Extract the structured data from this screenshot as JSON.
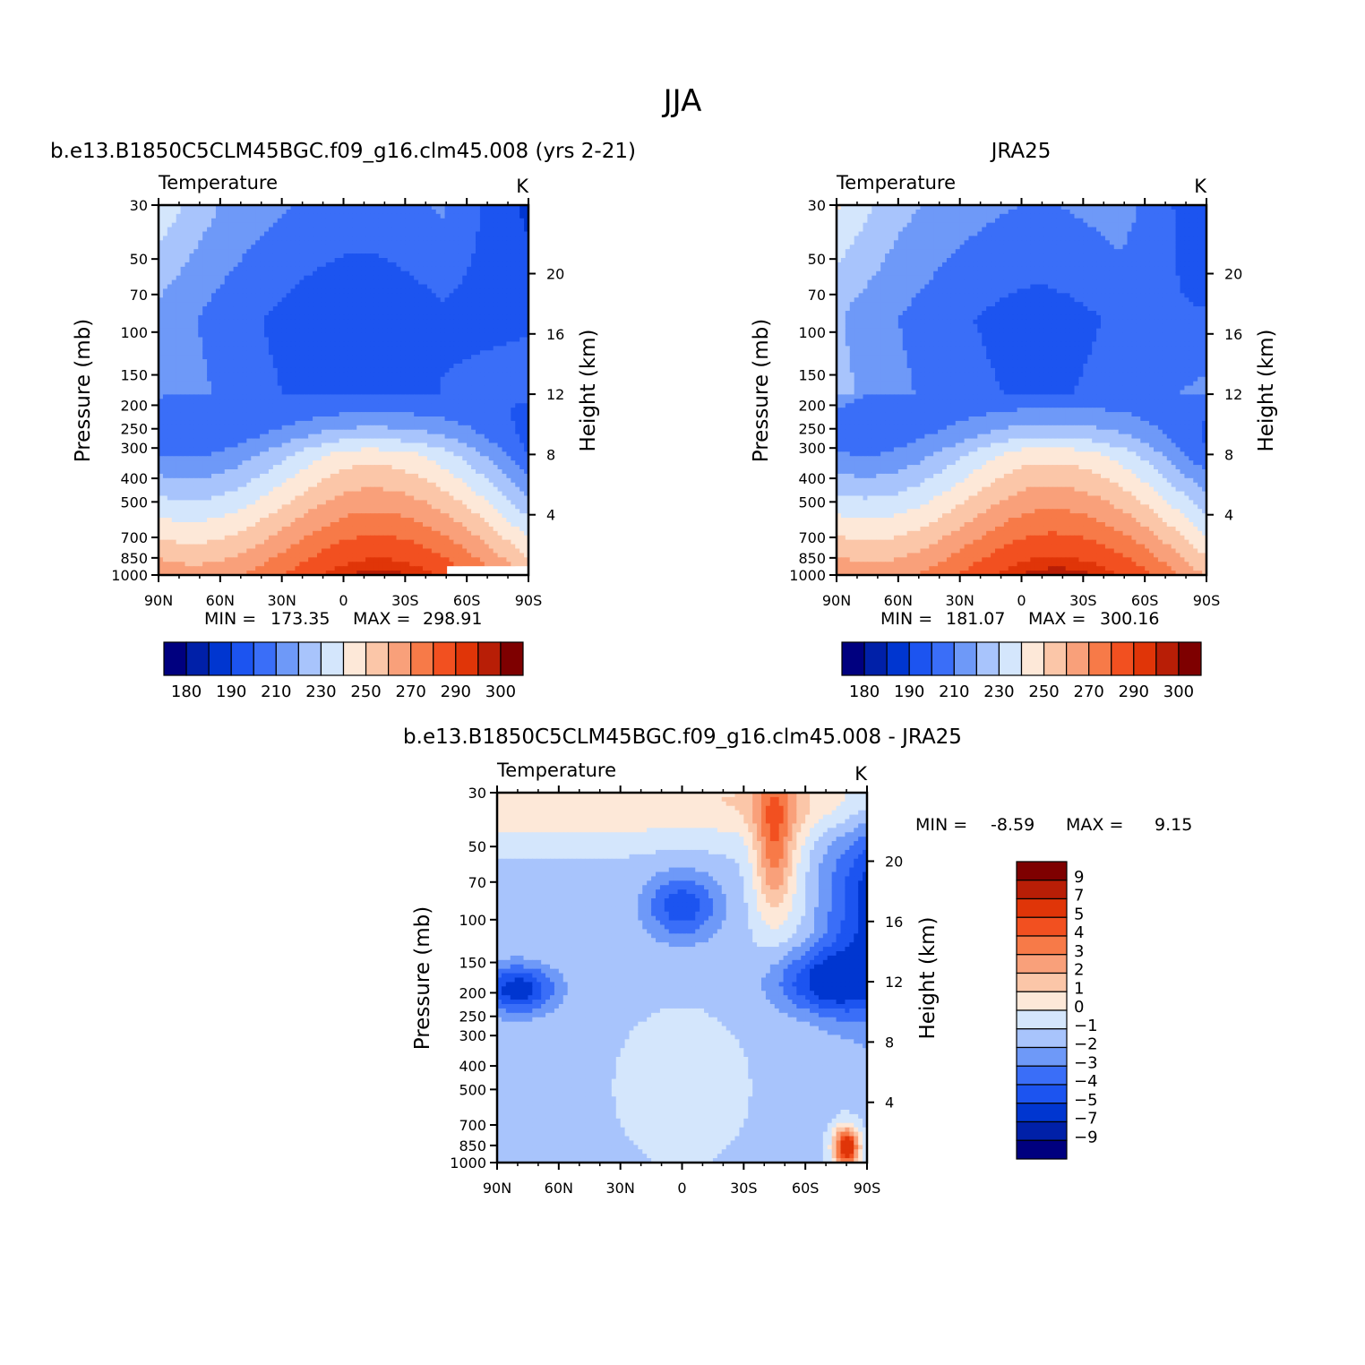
{
  "title": "JJA",
  "colors": {
    "temperature_palette": [
      "#00007f",
      "#0020a8",
      "#0036d0",
      "#1c54f0",
      "#3a6ef8",
      "#6e99f8",
      "#a8c4fc",
      "#d4e6fc",
      "#fde8d8",
      "#fbc6a8",
      "#f9a07a",
      "#f77a48",
      "#f25020",
      "#e03508",
      "#b81e06",
      "#7e0000"
    ],
    "difference_palette": [
      "#00007f",
      "#0020a8",
      "#0036d0",
      "#1c54f0",
      "#3a6ef8",
      "#6e99f8",
      "#a8c4fc",
      "#d4e6fc",
      "#fde8d8",
      "#fbc6a8",
      "#f9a07a",
      "#f77a48",
      "#f25020",
      "#e03508",
      "#b81e06",
      "#7e0000"
    ]
  },
  "chart_data": [
    {
      "type": "heatmap",
      "subtitle": "b.e13.B1850C5CLM45BGC.f09_g16.clm45.008 (yrs 2-21)",
      "variable": "Temperature",
      "units": "K",
      "xlabel": "",
      "ylabel": "Pressure (mb)",
      "ylabel_right": "Height (km)",
      "x_ticks": [
        "90N",
        "60N",
        "30N",
        "0",
        "30S",
        "60S",
        "90S"
      ],
      "y_ticks": [
        "30",
        "50",
        "70",
        "100",
        "150",
        "200",
        "250",
        "300",
        "400",
        "500",
        "700",
        "850",
        "1000"
      ],
      "y_right_ticks": [
        "20",
        "16",
        "12",
        "8",
        "4"
      ],
      "ylim": [
        1000,
        30
      ],
      "log_scale_y": true,
      "min_label": "MIN =",
      "min_value": "173.35",
      "max_label": "MAX =",
      "max_value": "298.91",
      "colorbar_labels": [
        "180",
        "190",
        "210",
        "230",
        "250",
        "270",
        "290",
        "300"
      ],
      "colorbar_orientation": "horizontal",
      "field": {
        "t_top": 212,
        "t_bottom": 297,
        "tropo_min": 192,
        "polar_top": 178,
        "polar_bottom": 255,
        "missing_south_surface": true
      }
    },
    {
      "type": "heatmap",
      "subtitle": "JRA25",
      "variable": "Temperature",
      "units": "K",
      "xlabel": "",
      "ylabel": "Pressure (mb)",
      "ylabel_right": "Height (km)",
      "x_ticks": [
        "90N",
        "60N",
        "30N",
        "0",
        "30S",
        "60S",
        "90S"
      ],
      "y_ticks": [
        "30",
        "50",
        "70",
        "100",
        "150",
        "200",
        "250",
        "300",
        "400",
        "500",
        "700",
        "850",
        "1000"
      ],
      "y_right_ticks": [
        "20",
        "16",
        "12",
        "8",
        "4"
      ],
      "ylim": [
        1000,
        30
      ],
      "log_scale_y": true,
      "min_label": "MIN =",
      "min_value": "181.07",
      "max_label": "MAX =",
      "max_value": "300.16",
      "colorbar_labels": [
        "180",
        "190",
        "210",
        "230",
        "250",
        "270",
        "290",
        "300"
      ],
      "colorbar_orientation": "horizontal",
      "field": {
        "t_top": 216,
        "t_bottom": 298,
        "tropo_min": 196,
        "polar_top": 184,
        "polar_bottom": 258,
        "missing_south_surface": false
      }
    },
    {
      "type": "heatmap",
      "subtitle": "b.e13.B1850C5CLM45BGC.f09_g16.clm45.008 - JRA25",
      "variable": "Temperature",
      "units": "K",
      "xlabel": "",
      "ylabel": "Pressure (mb)",
      "ylabel_right": "Height (km)",
      "x_ticks": [
        "90N",
        "60N",
        "30N",
        "0",
        "30S",
        "60S",
        "90S"
      ],
      "y_ticks": [
        "30",
        "50",
        "70",
        "100",
        "150",
        "200",
        "250",
        "300",
        "400",
        "500",
        "700",
        "850",
        "1000"
      ],
      "y_right_ticks": [
        "20",
        "16",
        "12",
        "8",
        "4"
      ],
      "ylim": [
        1000,
        30
      ],
      "log_scale_y": true,
      "min_label": "MIN =",
      "min_value": "-8.59",
      "max_label": "MAX =",
      "max_value": "9.15",
      "colorbar_labels": [
        "9",
        "7",
        "5",
        "4",
        "3",
        "2",
        "1",
        "0",
        "-1",
        "-2",
        "-3",
        "-4",
        "-5",
        "-7",
        "-9"
      ],
      "colorbar_orientation": "vertical"
    }
  ]
}
